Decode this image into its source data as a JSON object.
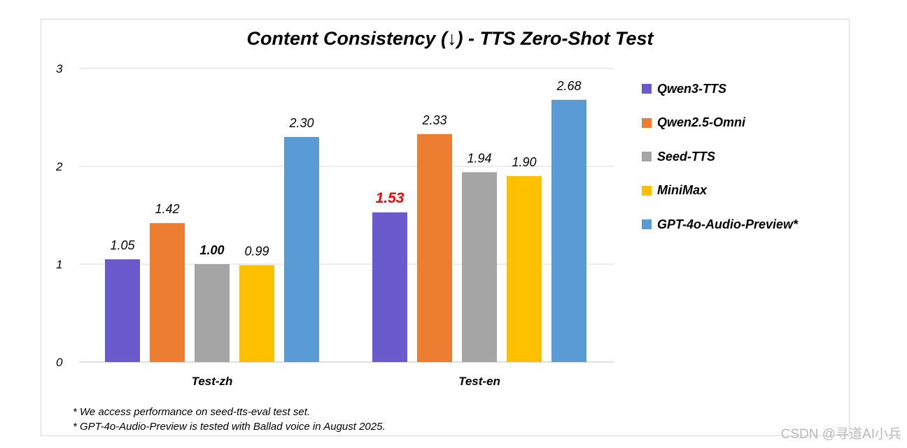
{
  "chart_data": {
    "type": "bar",
    "title": "Content Consistency (↓) - TTS Zero-Shot Test",
    "categories": [
      "Test-zh",
      "Test-en"
    ],
    "ylim": [
      0,
      3
    ],
    "yticks": [
      "0",
      "1",
      "2",
      "3"
    ],
    "series": [
      {
        "name": "Qwen3-TTS",
        "color": "#6a5acd",
        "values": [
          1.05,
          1.53
        ],
        "labels": [
          "1.05",
          "1.53"
        ]
      },
      {
        "name": "Qwen2.5-Omni",
        "color": "#ed7d31",
        "values": [
          1.42,
          2.33
        ],
        "labels": [
          "1.42",
          "2.33"
        ]
      },
      {
        "name": "Seed-TTS",
        "color": "#a5a5a5",
        "values": [
          1.0,
          1.94
        ],
        "labels": [
          "1.00",
          "1.94"
        ]
      },
      {
        "name": "MiniMax",
        "color": "#ffc000",
        "values": [
          0.99,
          1.9
        ],
        "labels": [
          "0.99",
          "1.90"
        ]
      },
      {
        "name": "GPT-4o-Audio-Preview*",
        "color": "#5b9bd5",
        "values": [
          2.3,
          2.68
        ],
        "labels": [
          "2.30",
          "2.68"
        ]
      }
    ],
    "highlight": {
      "series": 0,
      "category": 1,
      "color": "#ff0000"
    },
    "bold_label": {
      "series": 2,
      "category": 0
    },
    "grid": true,
    "legend": "right"
  },
  "notes": [
    "* We access performance on seed-tts-eval test set.",
    "* GPT-4o-Audio-Preview is tested with Ballad voice in August 2025."
  ],
  "watermark": "CSDN @寻道AI小兵"
}
